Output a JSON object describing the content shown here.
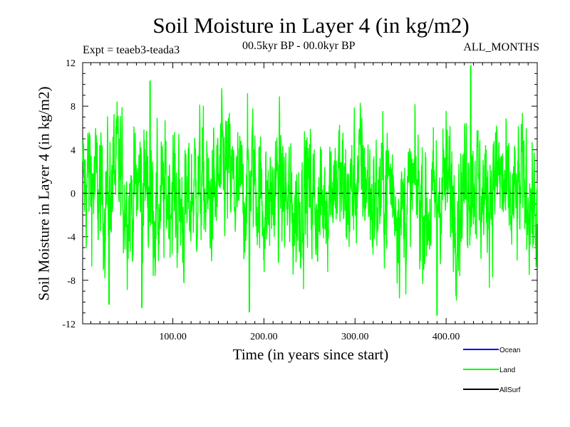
{
  "chart_data": {
    "type": "line",
    "title": "Soil Moisture in Layer 4 (in kg/m2)",
    "experiment_label": "Expt = teaeb3-teada3",
    "period_label": "00.5kyr BP - 00.0kyr BP",
    "months_label": "ALL_MONTHS",
    "xlabel": "Time (in years since start)",
    "ylabel": "Soil Moisture in Layer 4 (in kg/m2)",
    "xlim": [
      1,
      500
    ],
    "ylim": [
      -12,
      12
    ],
    "x_ticks": [
      {
        "value": 100,
        "label": "100.00"
      },
      {
        "value": 200,
        "label": "200.00"
      },
      {
        "value": 300,
        "label": "300.00"
      },
      {
        "value": 400,
        "label": "400.00"
      }
    ],
    "y_ticks": [
      {
        "value": 12,
        "label": "12"
      },
      {
        "value": 8,
        "label": "8"
      },
      {
        "value": 4,
        "label": "4"
      },
      {
        "value": 0,
        "label": "0"
      },
      {
        "value": -4,
        "label": "-4"
      },
      {
        "value": -8,
        "label": "-8"
      },
      {
        "value": -12,
        "label": "-12"
      }
    ],
    "zero_line": true,
    "series": [
      {
        "name": "Ocean",
        "color": "#0000ff",
        "values": []
      },
      {
        "name": "Land",
        "color": "#00ff00",
        "sample_step_years": 0.25,
        "extremes": [
          {
            "x": 66,
            "y": -10.5
          },
          {
            "x": 75,
            "y": 10.3
          },
          {
            "x": 184,
            "y": -10.9
          },
          {
            "x": 390,
            "y": -11.2
          },
          {
            "x": 427,
            "y": 11.7
          },
          {
            "x": 30,
            "y": -10.2
          }
        ],
        "note": "anomaly time series oscillating roughly between -8 and 8 kg/m2"
      },
      {
        "name": "AllSurf",
        "color": "#000000",
        "values": []
      }
    ]
  }
}
